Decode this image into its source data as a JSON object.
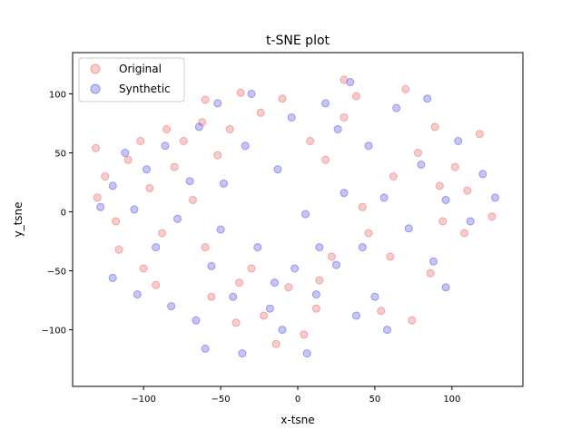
{
  "chart_data": {
    "type": "scatter",
    "title": "t-SNE plot",
    "xlabel": "x-tsne",
    "ylabel": "y_tsne",
    "xlim": [
      -146,
      146
    ],
    "ylim": [
      -148,
      135
    ],
    "xticks": [
      -150,
      -100,
      -50,
      0,
      50,
      100
    ],
    "yticks": [
      -100,
      -50,
      0,
      50,
      100
    ],
    "legend_position": "upper-left",
    "colors": {
      "Original": "#f08080",
      "Synthetic": "#6f6fe8"
    },
    "series": [
      {
        "name": "Original",
        "points": [
          [
            -131,
            54
          ],
          [
            -60,
            95
          ],
          [
            -37,
            101
          ],
          [
            -62,
            76
          ],
          [
            12,
            -82
          ],
          [
            42,
            4
          ],
          [
            89,
            72
          ],
          [
            30,
            112
          ],
          [
            -85,
            70
          ],
          [
            -130,
            12
          ],
          [
            -125,
            30
          ],
          [
            -118,
            -8
          ],
          [
            -110,
            44
          ],
          [
            -102,
            60
          ],
          [
            -96,
            20
          ],
          [
            -88,
            -18
          ],
          [
            -80,
            38
          ],
          [
            -74,
            60
          ],
          [
            -68,
            10
          ],
          [
            -60,
            -30
          ],
          [
            -52,
            48
          ],
          [
            -44,
            70
          ],
          [
            -38,
            -60
          ],
          [
            -30,
            -48
          ],
          [
            -22,
            -88
          ],
          [
            -14,
            -112
          ],
          [
            -6,
            -64
          ],
          [
            4,
            -104
          ],
          [
            14,
            -58
          ],
          [
            22,
            -38
          ],
          [
            30,
            80
          ],
          [
            38,
            98
          ],
          [
            46,
            -18
          ],
          [
            54,
            -84
          ],
          [
            62,
            30
          ],
          [
            70,
            104
          ],
          [
            78,
            50
          ],
          [
            86,
            -52
          ],
          [
            94,
            -8
          ],
          [
            102,
            38
          ],
          [
            110,
            18
          ],
          [
            118,
            66
          ],
          [
            126,
            -4
          ],
          [
            -56,
            -72
          ],
          [
            -40,
            -94
          ],
          [
            8,
            60
          ],
          [
            18,
            44
          ],
          [
            -24,
            84
          ],
          [
            -10,
            96
          ],
          [
            60,
            -38
          ],
          [
            74,
            -92
          ],
          [
            92,
            22
          ],
          [
            108,
            -18
          ],
          [
            -92,
            -62
          ],
          [
            -116,
            -32
          ],
          [
            -100,
            -48
          ]
        ]
      },
      {
        "name": "Synthetic",
        "points": [
          [
            -13,
            36
          ],
          [
            5,
            -2
          ],
          [
            -50,
            -15
          ],
          [
            -15,
            -60
          ],
          [
            25,
            -45
          ],
          [
            -60,
            -116
          ],
          [
            38,
            -88
          ],
          [
            -128,
            4
          ],
          [
            -120,
            22
          ],
          [
            -112,
            50
          ],
          [
            -106,
            2
          ],
          [
            -98,
            36
          ],
          [
            -92,
            -30
          ],
          [
            -86,
            56
          ],
          [
            -78,
            -6
          ],
          [
            -70,
            26
          ],
          [
            -64,
            72
          ],
          [
            -56,
            -46
          ],
          [
            -48,
            24
          ],
          [
            -42,
            -72
          ],
          [
            -34,
            56
          ],
          [
            -26,
            -30
          ],
          [
            -18,
            -82
          ],
          [
            -10,
            -100
          ],
          [
            -2,
            -48
          ],
          [
            6,
            -120
          ],
          [
            12,
            -70
          ],
          [
            18,
            92
          ],
          [
            26,
            70
          ],
          [
            34,
            110
          ],
          [
            42,
            -30
          ],
          [
            50,
            -72
          ],
          [
            56,
            12
          ],
          [
            64,
            88
          ],
          [
            72,
            -14
          ],
          [
            80,
            40
          ],
          [
            88,
            -42
          ],
          [
            96,
            10
          ],
          [
            104,
            60
          ],
          [
            112,
            -8
          ],
          [
            120,
            32
          ],
          [
            128,
            12
          ],
          [
            -82,
            -80
          ],
          [
            -66,
            -92
          ],
          [
            -120,
            -56
          ],
          [
            -104,
            -70
          ],
          [
            30,
            16
          ],
          [
            -4,
            80
          ],
          [
            -30,
            100
          ],
          [
            58,
            -100
          ],
          [
            96,
            -64
          ],
          [
            84,
            96
          ],
          [
            46,
            56
          ],
          [
            -52,
            92
          ],
          [
            14,
            -30
          ],
          [
            -36,
            -120
          ]
        ]
      }
    ]
  }
}
